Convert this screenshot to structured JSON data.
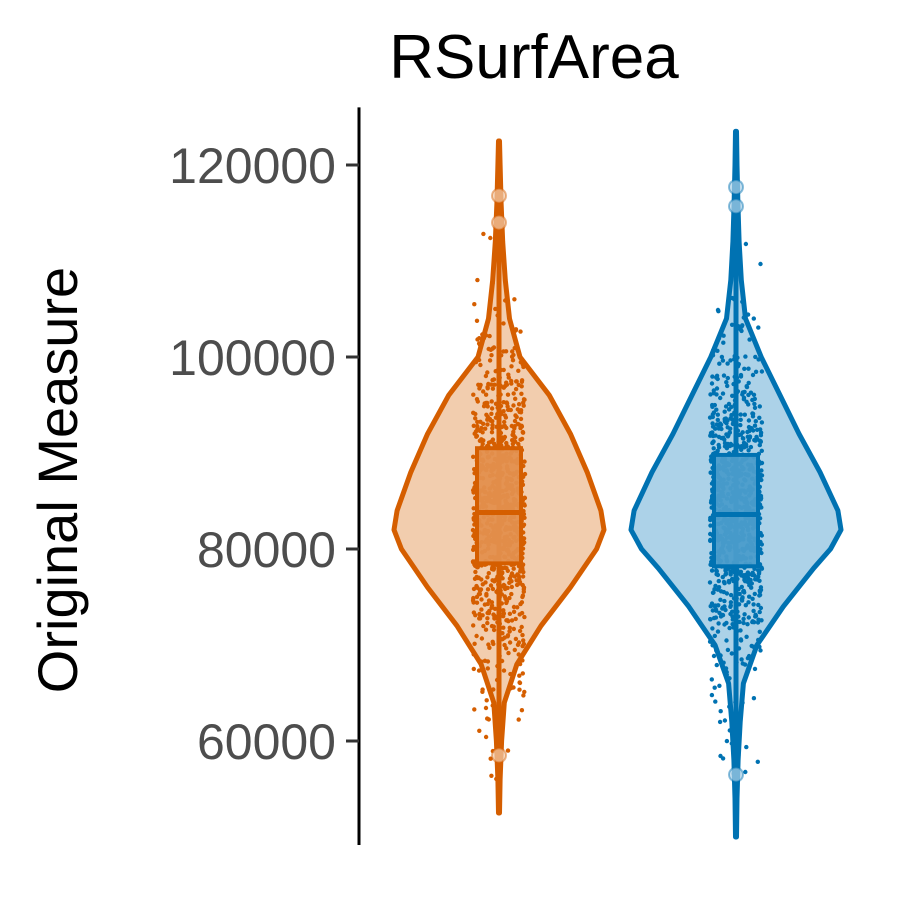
{
  "chart_data": {
    "type": "violin",
    "title": "RSurfArea",
    "xlabel": "",
    "ylabel": "Original Measure",
    "ylim": [
      50000,
      126000
    ],
    "y_ticks": [
      60000,
      80000,
      100000,
      120000
    ],
    "y_tick_labels": [
      "60000",
      "80000",
      "100000",
      "120000"
    ],
    "grid": false,
    "legend": "none",
    "series": [
      {
        "color": "#D55E00",
        "fill": "#F2CDAE",
        "box_fill": "#E38F4D",
        "min": 52500,
        "max": 122500,
        "q1": 78500,
        "median": 83800,
        "q3": 90500,
        "violin_profile": [
          [
            52500,
            0.005
          ],
          [
            56000,
            0.01
          ],
          [
            60000,
            0.025
          ],
          [
            64000,
            0.05
          ],
          [
            68000,
            0.17
          ],
          [
            72000,
            0.4
          ],
          [
            76000,
            0.68
          ],
          [
            80000,
            0.93
          ],
          [
            82000,
            1.0
          ],
          [
            84000,
            0.97
          ],
          [
            88000,
            0.84
          ],
          [
            92000,
            0.68
          ],
          [
            96000,
            0.48
          ],
          [
            100000,
            0.2
          ],
          [
            104000,
            0.1
          ],
          [
            108000,
            0.06
          ],
          [
            112000,
            0.035
          ],
          [
            116000,
            0.02
          ],
          [
            120000,
            0.01
          ],
          [
            122500,
            0.005
          ]
        ],
        "outliers": [
          58500,
          114000,
          116800
        ]
      },
      {
        "color": "#0072B2",
        "fill": "#ACD2E8",
        "box_fill": "#4A9CCB",
        "min": 50000,
        "max": 123500,
        "q1": 78200,
        "median": 83600,
        "q3": 89800,
        "violin_profile": [
          [
            50000,
            0.005
          ],
          [
            54000,
            0.01
          ],
          [
            58000,
            0.02
          ],
          [
            62000,
            0.04
          ],
          [
            66000,
            0.07
          ],
          [
            70000,
            0.2
          ],
          [
            74000,
            0.45
          ],
          [
            78000,
            0.74
          ],
          [
            80000,
            0.9
          ],
          [
            82000,
            1.0
          ],
          [
            84000,
            0.97
          ],
          [
            88000,
            0.8
          ],
          [
            92000,
            0.6
          ],
          [
            96000,
            0.42
          ],
          [
            100000,
            0.24
          ],
          [
            104000,
            0.09
          ],
          [
            108000,
            0.05
          ],
          [
            112000,
            0.03
          ],
          [
            116000,
            0.018
          ],
          [
            120000,
            0.01
          ],
          [
            123500,
            0.005
          ]
        ],
        "outliers": [
          56500,
          115700,
          117700
        ]
      }
    ]
  }
}
